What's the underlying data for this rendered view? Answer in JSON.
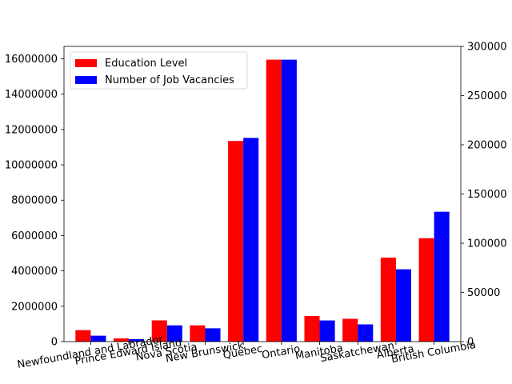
{
  "chart_data": {
    "type": "bar",
    "categories": [
      "Newfoundland and Labrador",
      "Prince Edward Island",
      "Nova Scotia",
      "New Brunswick",
      "Quebec",
      "Ontario",
      "Manitoba",
      "Saskatchewan",
      "Alberta",
      "British Columbia"
    ],
    "series": [
      {
        "name": "Education Level",
        "axis": "left",
        "color": "#ff0000",
        "values": [
          650000,
          180000,
          1200000,
          920000,
          11350000,
          15950000,
          1450000,
          1290000,
          4750000,
          5850000
        ]
      },
      {
        "name": "Number of Job Vacancies",
        "axis": "right",
        "color": "#0000ff",
        "values": [
          6000,
          2500,
          16500,
          13500,
          207000,
          286500,
          21500,
          17500,
          73500,
          132000
        ]
      }
    ],
    "y_left": {
      "lim": [
        0,
        16700000
      ],
      "ticks": [
        0,
        2000000,
        4000000,
        6000000,
        8000000,
        10000000,
        12000000,
        14000000,
        16000000
      ],
      "tick_labels": [
        "0",
        "2000000",
        "4000000",
        "6000000",
        "8000000",
        "10000000",
        "12000000",
        "14000000",
        "16000000"
      ]
    },
    "y_right": {
      "lim": [
        0,
        300000
      ],
      "ticks": [
        0,
        50000,
        100000,
        150000,
        200000,
        250000,
        300000
      ],
      "tick_labels": [
        "0",
        "50000",
        "100000",
        "150000",
        "200000",
        "250000",
        "300000"
      ]
    },
    "x_tick_rotation_deg": 10,
    "legend": {
      "placement": "upper-left",
      "entries": [
        "Education Level",
        "Number of Job Vacancies"
      ]
    },
    "grid": false
  }
}
